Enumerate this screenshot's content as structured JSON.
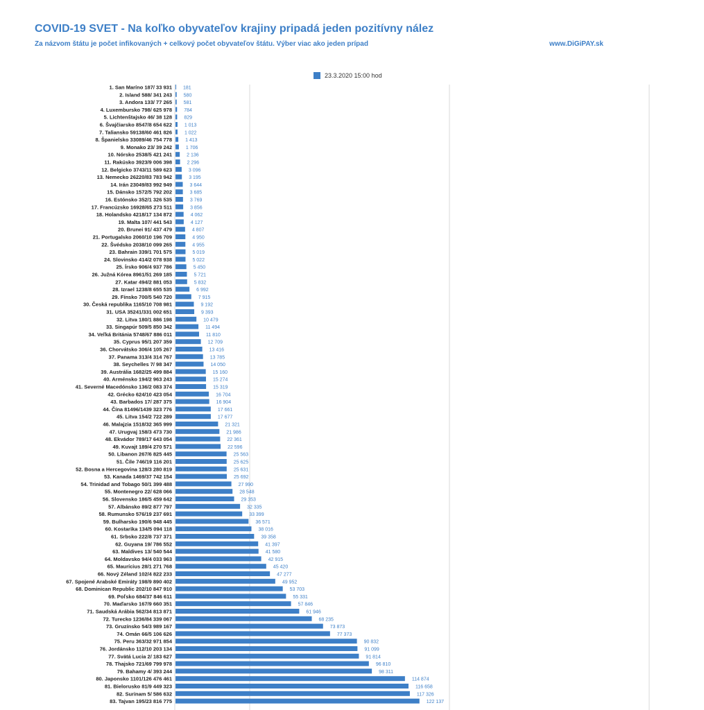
{
  "header": {
    "title": "COVID-19  SVET - Na koľko obyvateľov krajiny pripadá jeden pozitívny nález",
    "subtitle": "Za názvom štátu je počet infikovaných + celkový počet obyvateľov štátu.   Výber viac ako jeden prípad",
    "site": "www.DiGiPAY.sk"
  },
  "colors": {
    "accent": "#3d7fc7",
    "bar": "#3d7fc7",
    "grid": "#d9d9d9"
  },
  "chart_data": {
    "type": "bar",
    "orientation": "horizontal",
    "title": "COVID-19  SVET - Na koľko obyvateľov krajiny pripadá jeden pozitívny nález",
    "xlim": [
      0,
      300000
    ],
    "grid": true,
    "legend": "top-center",
    "series": [
      {
        "name": "23.3.2020 15:00 hod",
        "value_labels": [
          "181",
          "580",
          "581",
          "784",
          "829",
          "1 013",
          "1 022",
          "1 413",
          "1 706",
          "2 136",
          "2 296",
          "3 096",
          "3 195",
          "3 644",
          "3 685",
          "3 769",
          "3 856",
          "4 062",
          "4 127",
          "4 807",
          "4 950",
          "4 955",
          "5 019",
          "5 022",
          "5 450",
          "5 721",
          "5 832",
          "6 992",
          "7 915",
          "9 192",
          "9 393",
          "10 479",
          "11 494",
          "11 810",
          "12 709",
          "13 416",
          "13 785",
          "14 050",
          "15 160",
          "15 274",
          "15 319",
          "16 704",
          "16 904",
          "17 661",
          "17 677",
          "21 321",
          "21 986",
          "22 361",
          "22 596",
          "25 563",
          "25 625",
          "25 631",
          "25 692",
          "27 990",
          "28 548",
          "29 353",
          "32 335",
          "33 399",
          "36 571",
          "38 016",
          "39 358",
          "41 397",
          "41 580",
          "42 915",
          "45 420",
          "47 277",
          "49 952",
          "53 703",
          "55 331",
          "57 846",
          "61 946",
          "68 235",
          "73 873",
          "77 373",
          "90 832",
          "91 099",
          "91 814",
          "96 810",
          "98 311",
          "114 874",
          "116 658",
          "117 326",
          "122 137"
        ],
        "values": [
          181,
          580,
          581,
          784,
          829,
          1013,
          1022,
          1413,
          1706,
          2136,
          2296,
          3096,
          3195,
          3644,
          3685,
          3769,
          3856,
          4062,
          4127,
          4807,
          4950,
          4955,
          5019,
          5022,
          5450,
          5721,
          5832,
          6992,
          7915,
          9192,
          9393,
          10479,
          11494,
          11810,
          12709,
          13416,
          13785,
          14050,
          15160,
          15274,
          15319,
          16704,
          16904,
          17661,
          17677,
          21321,
          21986,
          22361,
          22596,
          25563,
          25625,
          25631,
          25692,
          27990,
          28548,
          29353,
          32335,
          33399,
          36571,
          38016,
          39358,
          41397,
          41580,
          42915,
          45420,
          47277,
          49952,
          53703,
          55331,
          57846,
          61946,
          68235,
          73873,
          77373,
          90832,
          91099,
          91814,
          96810,
          98311,
          114874,
          116658,
          117326,
          122137
        ]
      }
    ],
    "categories": [
      "1. San Maríno 187/ 33 931",
      "2. Island 588/ 341 243",
      "3. Andora 133/ 77 265",
      "4. Luxembursko 798/ 625 978",
      "5. Lichtenštajsko 46/ 38 128",
      "6. Švajčiarsko 8547/8 654 622",
      "7. Taliansko 59138/60 461 826",
      "8. Španielsko 33089/46 754 778",
      "9. Monako 23/ 39 242",
      "10. Nórsko 2538/5 421 241",
      "11. Rakúsko 3923/9 006 398",
      "12. Belgicko 3743/11 589 623",
      "13. Nemecko 26220/83 783 942",
      "14. Irán 23049/83 992 949",
      "15. Dánsko 1572/5 792 202",
      "16. Estónsko 352/1 326 535",
      "17. Francúzsko 16928/65 273 511",
      "18. Holandsko 4218/17 134 872",
      "19. Malta 107/ 441 543",
      "20. Brunei 91/ 437 479",
      "21. Portugalsko 2060/10 196 709",
      "22. Švédsko 2038/10 099 265",
      "23. Bahrain 339/1 701 575",
      "24. Slovinsko 414/2 078 938",
      "25. Írsko 906/4 937 786",
      "26. Južná Kórea 8961/51 269 185",
      "27. Katar 494/2 881 053",
      "28. Izrael 1238/8 655 535",
      "29. Fínsko 700/5 540 720",
      "30. Česká republika 1165/10 708 981",
      "31. USA 35241/331 002 651",
      "32. Litva 180/1 886 198",
      "33. Singapúr 509/5 850 342",
      "34. Veľká Británia 5748/67 886 011",
      "35. Cyprus 95/1 207 359",
      "36. Chorvátsko 306/4 105 267",
      "37. Panama 313/4 314 767",
      "38. Seychelles 7/ 98 347",
      "39. Austrália 1682/25 499 884",
      "40. Arménsko 194/2 963 243",
      "41. Severné Macedónsko 136/2 083 374",
      "42. Grécko 624/10 423 054",
      "43. Barbados 17/ 287 375",
      "44. Čína 81496/1439 323 776",
      "45. Litva 154/2 722 289",
      "46. Malajzia 1518/32 365 999",
      "47. Urugvaj 158/3 473 730",
      "48. Ekvádor 789/17 643 054",
      "49. Kuvajt 189/4 270 571",
      "50. Libanon 267/6 825 445",
      "51. Čile 746/19 116 201",
      "52. Bosna a Hercegovina 128/3 280 819",
      "53. Kanada 1469/37 742 154",
      "54. Trinidad and Tobago 50/1 399 488",
      "55. Montenegro 22/ 628 066",
      "56. Slovensko 186/5 459 642",
      "57. Albánsko 89/2 877 797",
      "58. Rumunsko 576/19 237 691",
      "59. Bulharsko 190/6 948 445",
      "60. Kostarika 134/5 094 118",
      "61. Srbsko 222/8 737 371",
      "62. Guyana 19/ 786 552",
      "63. Maldives 13/ 540 544",
      "64. Moldavsko 94/4 033 963",
      "65. Maurícius 28/1 271 768",
      "66. Nový Zéland 102/4 822 233",
      "67. Spojené Arabské Emiráty 198/9 890 402",
      "68. Dominican Republic 202/10 847 910",
      "69. Poľsko 684/37 846 611",
      "70. Maďarsko 167/9 660 351",
      "71. Saudská Arábia 562/34 813 871",
      "72. Turecko 1236/84 339 067",
      "73. Gruzínsko 54/3 989 167",
      "74. Omán 66/5 106 626",
      "75. Peru 363/32 971 854",
      "76. Jordánsko 112/10 203 134",
      "77. Svätá Lucia 2/ 183 627",
      "78. Thajsko 721/69 799 978",
      "79. Bahamy 4/ 393 244",
      "80. Japonsko 1101/126 476 461",
      "81. Bielorusko 81/9 449 323",
      "82. Surinam 5/ 586 632",
      "83. Tajvan 195/23 816 775"
    ]
  }
}
